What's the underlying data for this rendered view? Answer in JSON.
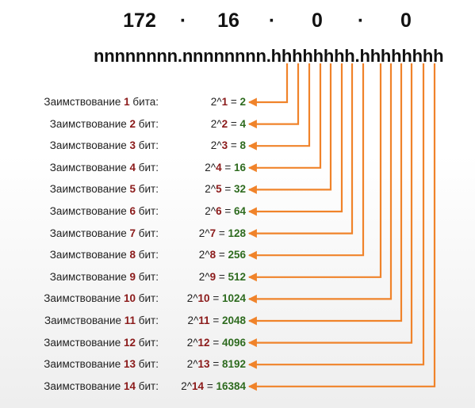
{
  "header": {
    "octets": [
      "172",
      "16",
      "0",
      "0"
    ],
    "separator": "·",
    "mask": "nnnnnnnn.nnnnnnnn.hhhhhhhh.hhhhhhhh"
  },
  "colors": {
    "arrow": "#f0832a",
    "bits": "#8b1a1a",
    "result": "#2e6b1f"
  },
  "rows": [
    {
      "prefix": "Заимствование ",
      "n": "1",
      "suffix": " бита:",
      "pow_prefix": "2^",
      "exp": "1",
      "eq": " = ",
      "result": "2"
    },
    {
      "prefix": "Заимствование ",
      "n": "2",
      "suffix": " бит:",
      "pow_prefix": "2^",
      "exp": "2",
      "eq": " = ",
      "result": "4"
    },
    {
      "prefix": "Заимствование ",
      "n": "3",
      "suffix": " бит:",
      "pow_prefix": "2^",
      "exp": "3",
      "eq": " = ",
      "result": "8"
    },
    {
      "prefix": "Заимствование ",
      "n": "4",
      "suffix": " бит:",
      "pow_prefix": "2^",
      "exp": "4",
      "eq": " = ",
      "result": "16"
    },
    {
      "prefix": "Заимствование ",
      "n": "5",
      "suffix": " бит:",
      "pow_prefix": "2^",
      "exp": "5",
      "eq": " = ",
      "result": "32"
    },
    {
      "prefix": "Заимствование ",
      "n": "6",
      "suffix": " бит:",
      "pow_prefix": "2^",
      "exp": "6",
      "eq": " = ",
      "result": "64"
    },
    {
      "prefix": "Заимствование ",
      "n": "7",
      "suffix": " бит:",
      "pow_prefix": "2^",
      "exp": "7",
      "eq": " = ",
      "result": "128"
    },
    {
      "prefix": "Заимствование ",
      "n": "8",
      "suffix": " бит:",
      "pow_prefix": "2^",
      "exp": "8",
      "eq": " = ",
      "result": "256"
    },
    {
      "prefix": "Заимствование ",
      "n": "9",
      "suffix": " бит:",
      "pow_prefix": "2^",
      "exp": "9",
      "eq": " = ",
      "result": "512"
    },
    {
      "prefix": "Заимствование ",
      "n": "10",
      "suffix": " бит:",
      "pow_prefix": "2^",
      "exp": "10",
      "eq": " = ",
      "result": "1024"
    },
    {
      "prefix": "Заимствование ",
      "n": "11",
      "suffix": " бит:",
      "pow_prefix": "2^",
      "exp": "11",
      "eq": " = ",
      "result": "2048"
    },
    {
      "prefix": "Заимствование ",
      "n": "12",
      "suffix": " бит:",
      "pow_prefix": "2^",
      "exp": "12",
      "eq": " = ",
      "result": "4096"
    },
    {
      "prefix": "Заимствование ",
      "n": "13",
      "suffix": " бит:",
      "pow_prefix": "2^",
      "exp": "13",
      "eq": " = ",
      "result": "8192"
    },
    {
      "prefix": "Заимствование ",
      "n": "14",
      "suffix": " бит:",
      "pow_prefix": "2^",
      "exp": "14",
      "eq": " = ",
      "result": "16384"
    }
  ]
}
